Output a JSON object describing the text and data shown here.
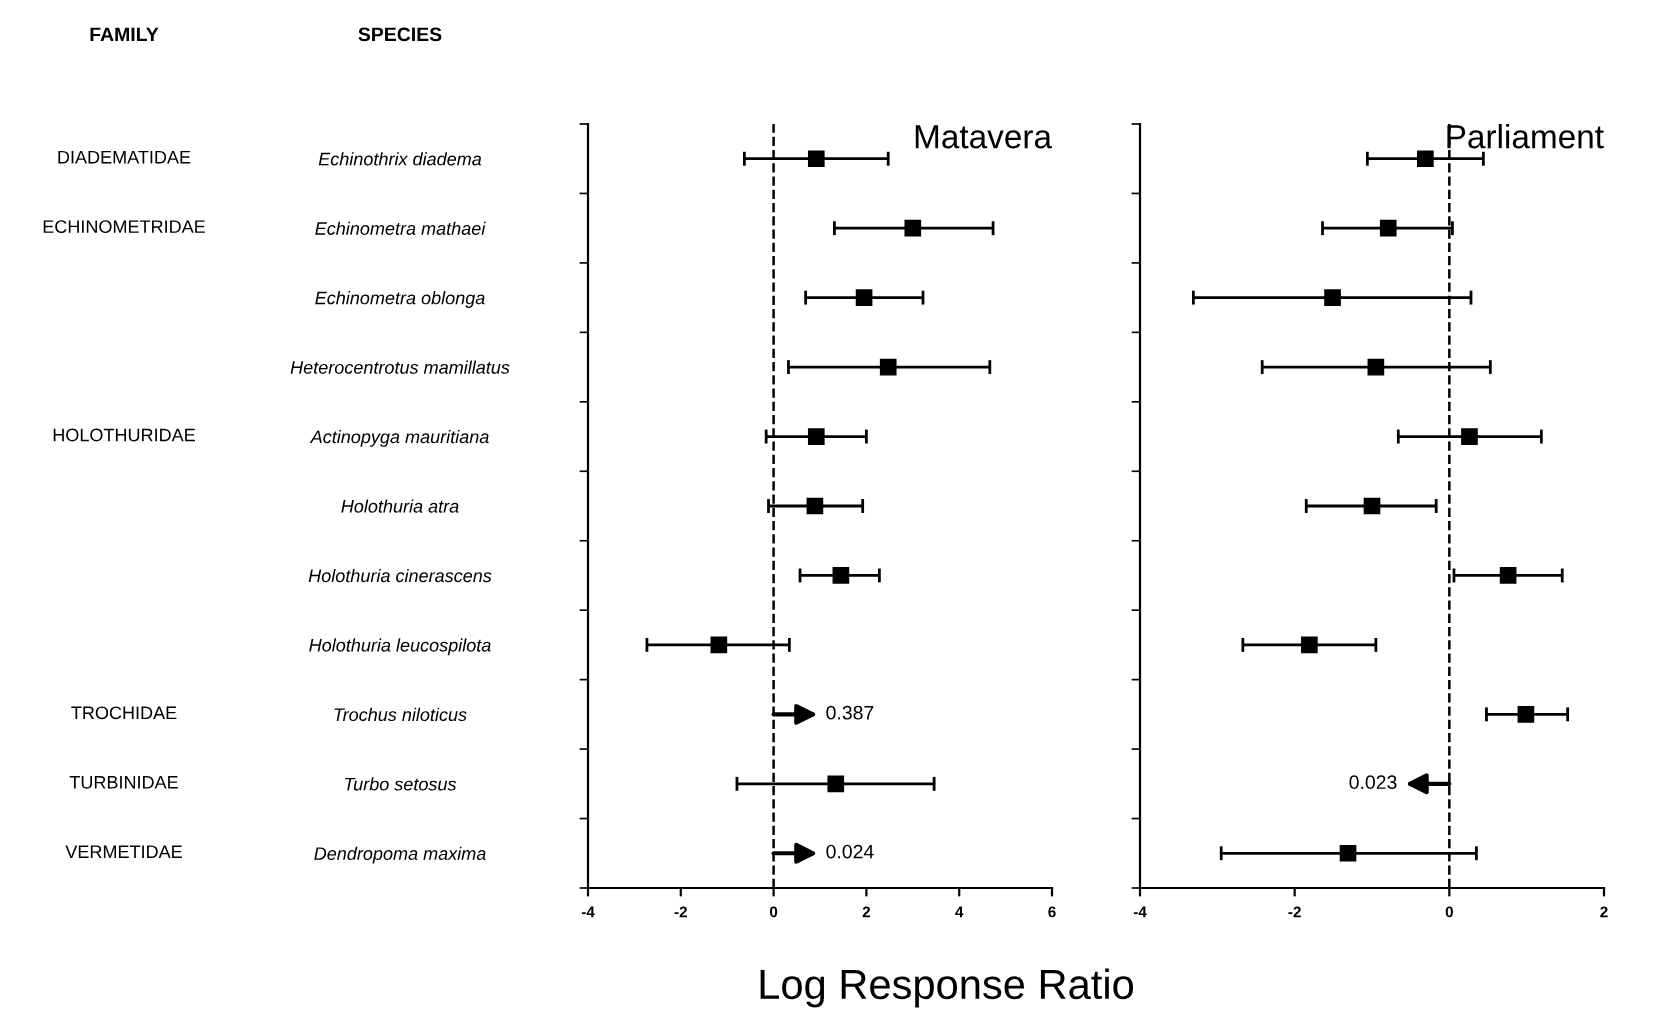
{
  "chart_data": [
    {
      "type": "scatter",
      "orientation": "horizontal",
      "title": "Matavera",
      "xlabel": "Log Response Ratio",
      "categories": [
        "Echinothrix diadema",
        "Echinometra mathaei",
        "Echinometra oblonga",
        "Heterocentrotus mamillatus",
        "Actinopyga mauritiana",
        "Holothuria atra",
        "Holothuria cinerascens",
        "Holothuria leucospilota",
        "Trochus niloticus",
        "Turbo setosus",
        "Dendropoma maxima"
      ],
      "series": [
        {
          "color": "#000000",
          "values": [
            0.92,
            3.0,
            1.95,
            2.47,
            0.92,
            0.89,
            1.45,
            -1.18,
            null,
            1.34,
            null
          ],
          "errors": [
            [
              -0.63,
              2.47
            ],
            [
              1.31,
              4.73
            ],
            [
              0.69,
              3.22
            ],
            [
              0.32,
              4.66
            ],
            [
              -0.16,
              2.0
            ],
            [
              -0.11,
              1.92
            ],
            [
              0.57,
              2.28
            ],
            [
              -2.73,
              0.34
            ],
            null,
            [
              -0.79,
              3.46
            ],
            null
          ]
        }
      ],
      "xlim": [
        -4,
        6
      ],
      "xticks": [
        -4,
        -2,
        0,
        2,
        4,
        6
      ],
      "marker": "square",
      "grid": false,
      "legend": false,
      "ref_lines": [
        {
          "axis": "x",
          "value": 0,
          "line_style": "dashed",
          "color": "#000000"
        }
      ],
      "y2_categories": [
        "DIADEMATIDAE",
        "ECHINOMETRIDAE",
        null,
        null,
        "HOLOTHURIDAE",
        null,
        null,
        null,
        "TROCHIDAE",
        "TURBINIDAE",
        "VERMETIDAE"
      ],
      "annotations": [
        "FAMILY",
        "SPECIES",
        "0.387",
        "0.024"
      ]
    },
    {
      "type": "scatter",
      "orientation": "horizontal",
      "title": "Parliament",
      "tick_labels": "x",
      "categories": [
        null,
        null,
        null,
        null,
        null,
        null,
        null,
        null,
        null,
        null,
        null
      ],
      "series": [
        {
          "color": "#000000",
          "values": [
            -0.31,
            -0.79,
            -1.51,
            -0.95,
            0.26,
            -1.0,
            0.76,
            -1.81,
            0.99,
            null,
            -1.31
          ],
          "errors": [
            [
              -1.06,
              0.44
            ],
            [
              -1.64,
              0.04
            ],
            [
              -3.31,
              0.28
            ],
            [
              -2.42,
              0.53
            ],
            [
              -0.66,
              1.19
            ],
            [
              -1.85,
              -0.17
            ],
            [
              0.06,
              1.46
            ],
            [
              -2.67,
              -0.95
            ],
            [
              0.48,
              1.53
            ],
            null,
            [
              -2.95,
              0.35
            ]
          ]
        }
      ],
      "xlim": [
        -4,
        2
      ],
      "xticks": [
        -4,
        -2,
        0,
        2
      ],
      "marker": "square",
      "grid": false,
      "legend": false,
      "ref_lines": [
        {
          "axis": "x",
          "value": 0,
          "line_style": "dashed",
          "color": "#000000"
        }
      ],
      "annotations": [
        "0.023"
      ]
    }
  ]
}
